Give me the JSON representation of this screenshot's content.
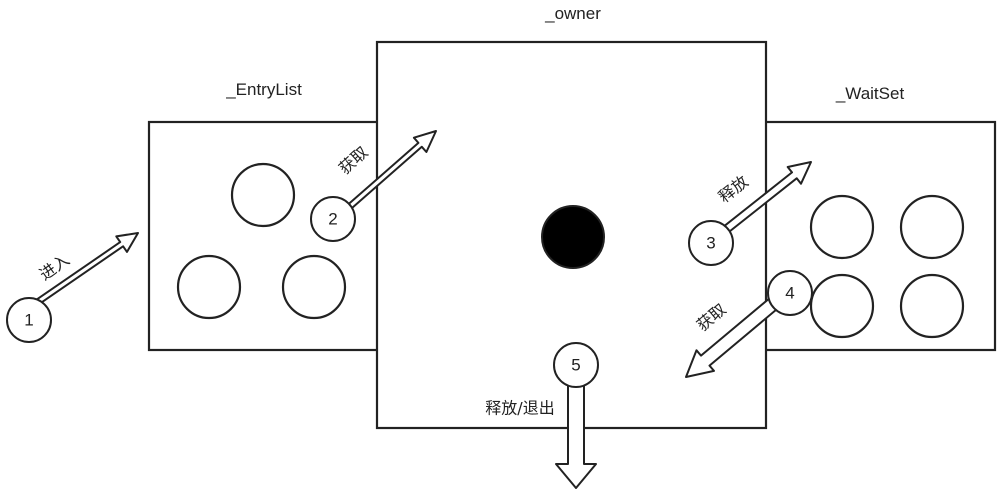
{
  "regions": {
    "entry_list": {
      "label": "_EntryList"
    },
    "owner": {
      "label": "_owner"
    },
    "wait_set": {
      "label": "_WaitSet"
    }
  },
  "steps": [
    {
      "number": "1",
      "label": "进入"
    },
    {
      "number": "2",
      "label": "获取"
    },
    {
      "number": "3",
      "label": "释放"
    },
    {
      "number": "4",
      "label": "获取"
    },
    {
      "number": "5",
      "label": "释放/退出"
    }
  ]
}
